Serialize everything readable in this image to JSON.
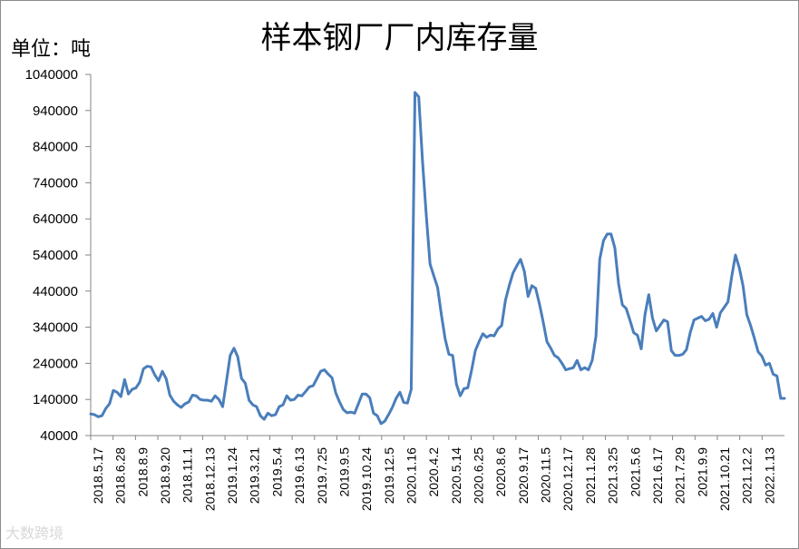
{
  "title": "样本钢厂厂内库存量",
  "unit_label": "单位：吨",
  "watermark": "大数跨境",
  "chart_data": {
    "type": "line",
    "title": "样本钢厂厂内库存量",
    "ylabel": "单位：吨",
    "xlabel": "",
    "ylim": [
      40000,
      1040000
    ],
    "yticks": [
      40000,
      140000,
      240000,
      340000,
      440000,
      540000,
      640000,
      740000,
      840000,
      940000,
      1040000
    ],
    "grid": false,
    "legend": "none",
    "x_tick_labels": [
      "2018.5.17",
      "2018.6.28",
      "2018.8.9",
      "2018.9.20",
      "2018.11.1",
      "2018.12.13",
      "2019.1.24",
      "2019.3.21",
      "2019.5.4",
      "2019.6.13",
      "2019.7.25",
      "2019.9.5",
      "2019.10.24",
      "2019.12.5",
      "2020.1.16",
      "2020.4.2",
      "2020.5.14",
      "2020.6.25",
      "2020.8.6",
      "2020.9.17",
      "2020.11.5",
      "2020.12.17",
      "2021.1.28",
      "2021.3.25",
      "2021.5.6",
      "2021.6.17",
      "2021.7.29",
      "2021.9.9",
      "2021.10.21",
      "2021.12.2",
      "2022.1.13"
    ],
    "line_color": "#4a7ebb",
    "series": [
      {
        "values": [
          100000,
          98000,
          92000,
          95000,
          115000,
          128000,
          165000,
          160000,
          148000,
          195000,
          155000,
          168000,
          172000,
          188000,
          225000,
          232000,
          230000,
          208000,
          192000,
          218000,
          198000,
          152000,
          135000,
          125000,
          118000,
          128000,
          133000,
          152000,
          150000,
          140000,
          138000,
          138000,
          135000,
          150000,
          140000,
          120000,
          190000,
          262000,
          282000,
          258000,
          198000,
          185000,
          138000,
          125000,
          120000,
          95000,
          85000,
          102000,
          95000,
          98000,
          120000,
          125000,
          150000,
          138000,
          140000,
          152000,
          150000,
          162000,
          175000,
          178000,
          198000,
          218000,
          222000,
          210000,
          200000,
          158000,
          133000,
          112000,
          103000,
          105000,
          102000,
          128000,
          155000,
          155000,
          145000,
          102000,
          95000,
          73000,
          80000,
          98000,
          118000,
          143000,
          160000,
          132000,
          130000,
          168000,
          990000,
          978000,
          800000,
          650000,
          515000,
          482000,
          450000,
          375000,
          308000,
          265000,
          262000,
          182000,
          150000,
          170000,
          172000,
          220000,
          275000,
          300000,
          322000,
          312000,
          318000,
          316000,
          335000,
          345000,
          415000,
          455000,
          490000,
          510000,
          528000,
          495000,
          425000,
          455000,
          448000,
          405000,
          355000,
          300000,
          282000,
          262000,
          255000,
          240000,
          222000,
          225000,
          228000,
          248000,
          222000,
          228000,
          222000,
          248000,
          315000,
          528000,
          580000,
          598000,
          598000,
          560000,
          460000,
          402000,
          392000,
          360000,
          325000,
          318000,
          280000,
          375000,
          430000,
          365000,
          330000,
          345000,
          360000,
          355000,
          275000,
          262000,
          262000,
          265000,
          278000,
          325000,
          360000,
          365000,
          370000,
          358000,
          362000,
          378000,
          340000,
          380000,
          395000,
          410000,
          480000,
          540000,
          505000,
          455000,
          375000,
          345000,
          310000,
          272000,
          260000,
          235000,
          240000,
          210000,
          205000,
          143000,
          143000
        ]
      }
    ]
  }
}
